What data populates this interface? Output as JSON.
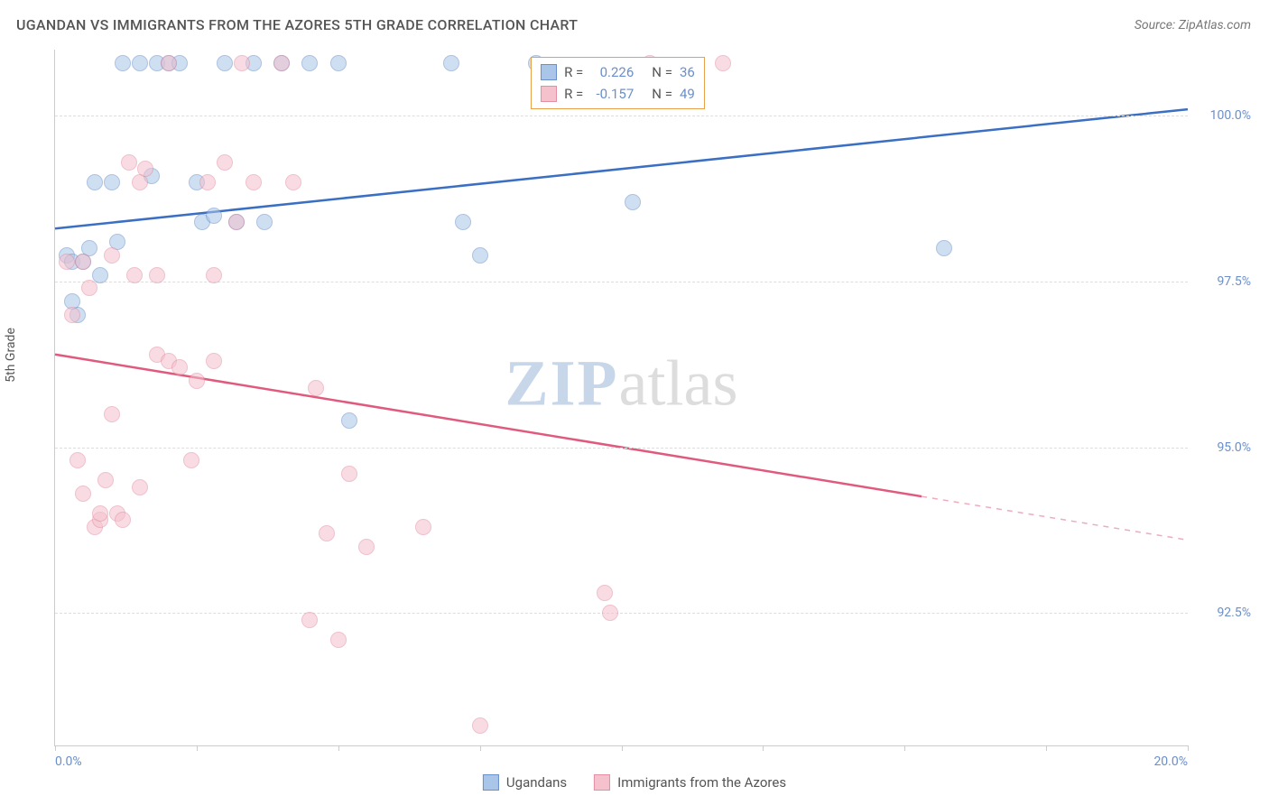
{
  "title": "UGANDAN VS IMMIGRANTS FROM THE AZORES 5TH GRADE CORRELATION CHART",
  "source": "Source: ZipAtlas.com",
  "y_axis_label": "5th Grade",
  "watermark": {
    "part1": "ZIP",
    "part2": "atlas"
  },
  "chart": {
    "type": "scatter",
    "background_color": "#ffffff",
    "grid_color": "#dddddd",
    "axis_color": "#cccccc",
    "tick_label_color": "#6b8fc9",
    "text_color": "#555555",
    "xlim": [
      0,
      20
    ],
    "ylim": [
      90.5,
      101.0
    ],
    "x_ticks": [
      0,
      2.5,
      5,
      7.5,
      10,
      12.5,
      15,
      17.5,
      20
    ],
    "x_tick_labels_shown": {
      "0": "0.0%",
      "20": "20.0%"
    },
    "y_ticks": [
      92.5,
      95.0,
      97.5,
      100.0
    ],
    "y_tick_labels": [
      "92.5%",
      "95.0%",
      "97.5%",
      "100.0%"
    ],
    "marker_radius": 9,
    "marker_opacity": 0.55,
    "line_width": 2.5,
    "series": [
      {
        "name": "Ugandans",
        "color_fill": "#a9c5e8",
        "color_stroke": "#6b8fc9",
        "line_color": "#3a6fc4",
        "R": "0.226",
        "N": "36",
        "trend": {
          "x1": 0,
          "y1": 98.3,
          "x2": 20,
          "y2": 100.1,
          "dashed_from": null
        },
        "points": [
          [
            0.2,
            97.9
          ],
          [
            0.3,
            97.8
          ],
          [
            0.4,
            97.0
          ],
          [
            0.3,
            97.2
          ],
          [
            0.5,
            97.8
          ],
          [
            0.6,
            98.0
          ],
          [
            0.7,
            99.0
          ],
          [
            0.8,
            97.6
          ],
          [
            1.0,
            99.0
          ],
          [
            1.1,
            98.1
          ],
          [
            1.2,
            100.8
          ],
          [
            1.5,
            100.8
          ],
          [
            1.7,
            99.1
          ],
          [
            1.8,
            100.8
          ],
          [
            2.0,
            100.8
          ],
          [
            2.2,
            100.8
          ],
          [
            2.5,
            99.0
          ],
          [
            2.6,
            98.4
          ],
          [
            2.8,
            98.5
          ],
          [
            3.0,
            100.8
          ],
          [
            3.2,
            98.4
          ],
          [
            3.5,
            100.8
          ],
          [
            3.7,
            98.4
          ],
          [
            4.0,
            100.8
          ],
          [
            4.5,
            100.8
          ],
          [
            5.0,
            100.8
          ],
          [
            5.2,
            95.4
          ],
          [
            7.0,
            100.8
          ],
          [
            7.2,
            98.4
          ],
          [
            7.5,
            97.9
          ],
          [
            8.5,
            100.8
          ],
          [
            10.2,
            98.7
          ],
          [
            15.7,
            98.0
          ]
        ]
      },
      {
        "name": "Immigrants from the Azores",
        "color_fill": "#f5c1cd",
        "color_stroke": "#e38fa3",
        "line_color": "#e05a7d",
        "R": "-0.157",
        "N": "49",
        "trend": {
          "x1": 0,
          "y1": 96.4,
          "x2": 20,
          "y2": 93.6,
          "dashed_from": 15.3
        },
        "points": [
          [
            0.2,
            97.8
          ],
          [
            0.3,
            97.0
          ],
          [
            0.4,
            94.8
          ],
          [
            0.5,
            94.3
          ],
          [
            0.5,
            97.8
          ],
          [
            0.6,
            97.4
          ],
          [
            0.7,
            93.8
          ],
          [
            0.8,
            93.9
          ],
          [
            0.8,
            94.0
          ],
          [
            0.9,
            94.5
          ],
          [
            1.0,
            95.5
          ],
          [
            1.0,
            97.9
          ],
          [
            1.1,
            94.0
          ],
          [
            1.2,
            93.9
          ],
          [
            1.3,
            99.3
          ],
          [
            1.4,
            97.6
          ],
          [
            1.5,
            99.0
          ],
          [
            1.5,
            94.4
          ],
          [
            1.6,
            99.2
          ],
          [
            1.8,
            96.4
          ],
          [
            1.8,
            97.6
          ],
          [
            2.0,
            100.8
          ],
          [
            2.0,
            96.3
          ],
          [
            2.2,
            96.2
          ],
          [
            2.4,
            94.8
          ],
          [
            2.5,
            96.0
          ],
          [
            2.7,
            99.0
          ],
          [
            2.8,
            96.3
          ],
          [
            2.8,
            97.6
          ],
          [
            3.0,
            99.3
          ],
          [
            3.2,
            98.4
          ],
          [
            3.3,
            100.8
          ],
          [
            3.5,
            99.0
          ],
          [
            4.0,
            100.8
          ],
          [
            4.2,
            99.0
          ],
          [
            4.5,
            92.4
          ],
          [
            4.6,
            95.9
          ],
          [
            4.8,
            93.7
          ],
          [
            5.0,
            92.1
          ],
          [
            5.2,
            94.6
          ],
          [
            5.5,
            93.5
          ],
          [
            6.5,
            93.8
          ],
          [
            7.5,
            90.8
          ],
          [
            9.7,
            92.8
          ],
          [
            9.8,
            92.5
          ],
          [
            10.5,
            100.8
          ],
          [
            11.8,
            100.8
          ]
        ]
      }
    ]
  },
  "stats_legend": {
    "border_color": "#e8a04a",
    "rows": [
      {
        "R_label": "R =",
        "R_val": "0.226",
        "N_label": "N =",
        "N_val": "36"
      },
      {
        "R_label": "R =",
        "R_val": "-0.157",
        "N_label": "N =",
        "N_val": "49"
      }
    ]
  },
  "bottom_legend": {
    "items": [
      {
        "label": "Ugandans"
      },
      {
        "label": "Immigrants from the Azores"
      }
    ]
  }
}
